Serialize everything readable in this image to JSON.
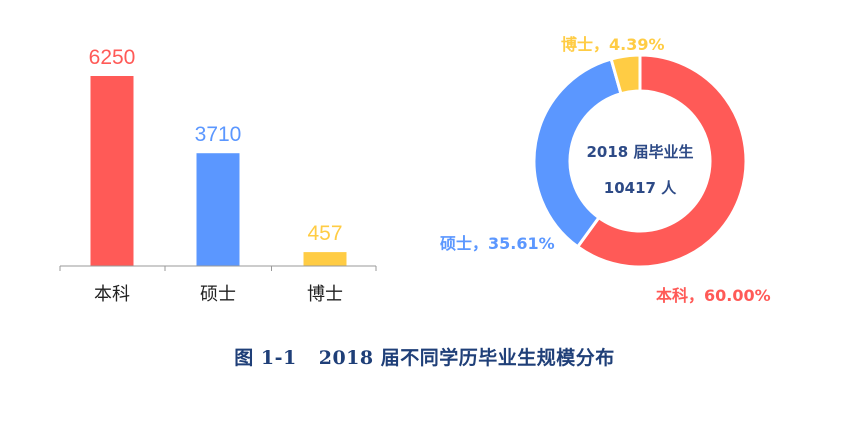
{
  "colors": {
    "bachelor": "#FF5A57",
    "master": "#5B97FF",
    "doctor": "#FFCC44",
    "axis": "#999999",
    "center_text": "#2d4a86",
    "caption": "#1f3f78"
  },
  "chart_data": [
    {
      "type": "bar",
      "categories": [
        "本科",
        "硕士",
        "博士"
      ],
      "values": [
        6250,
        3710,
        457
      ],
      "data_labels": [
        "6250",
        "3710",
        "457"
      ],
      "colors": [
        "#FF5A57",
        "#5B97FF",
        "#FFCC44"
      ],
      "ylim": [
        0,
        6250
      ],
      "grid": false,
      "legend": "none"
    },
    {
      "type": "pie",
      "style": "donut",
      "categories": [
        "本科",
        "硕士",
        "博士"
      ],
      "values": [
        60.0,
        35.61,
        4.39
      ],
      "labels": [
        "本科，60.00%",
        "硕士，35.61%",
        "博士，4.39%"
      ],
      "colors": [
        "#FF5A57",
        "#5B97FF",
        "#FFCC44"
      ],
      "center_text": [
        "2018 届毕业生",
        "10417 人"
      ]
    }
  ],
  "caption": {
    "number": "图 1-1",
    "title": "2018 届不同学历毕业生规模分布"
  }
}
